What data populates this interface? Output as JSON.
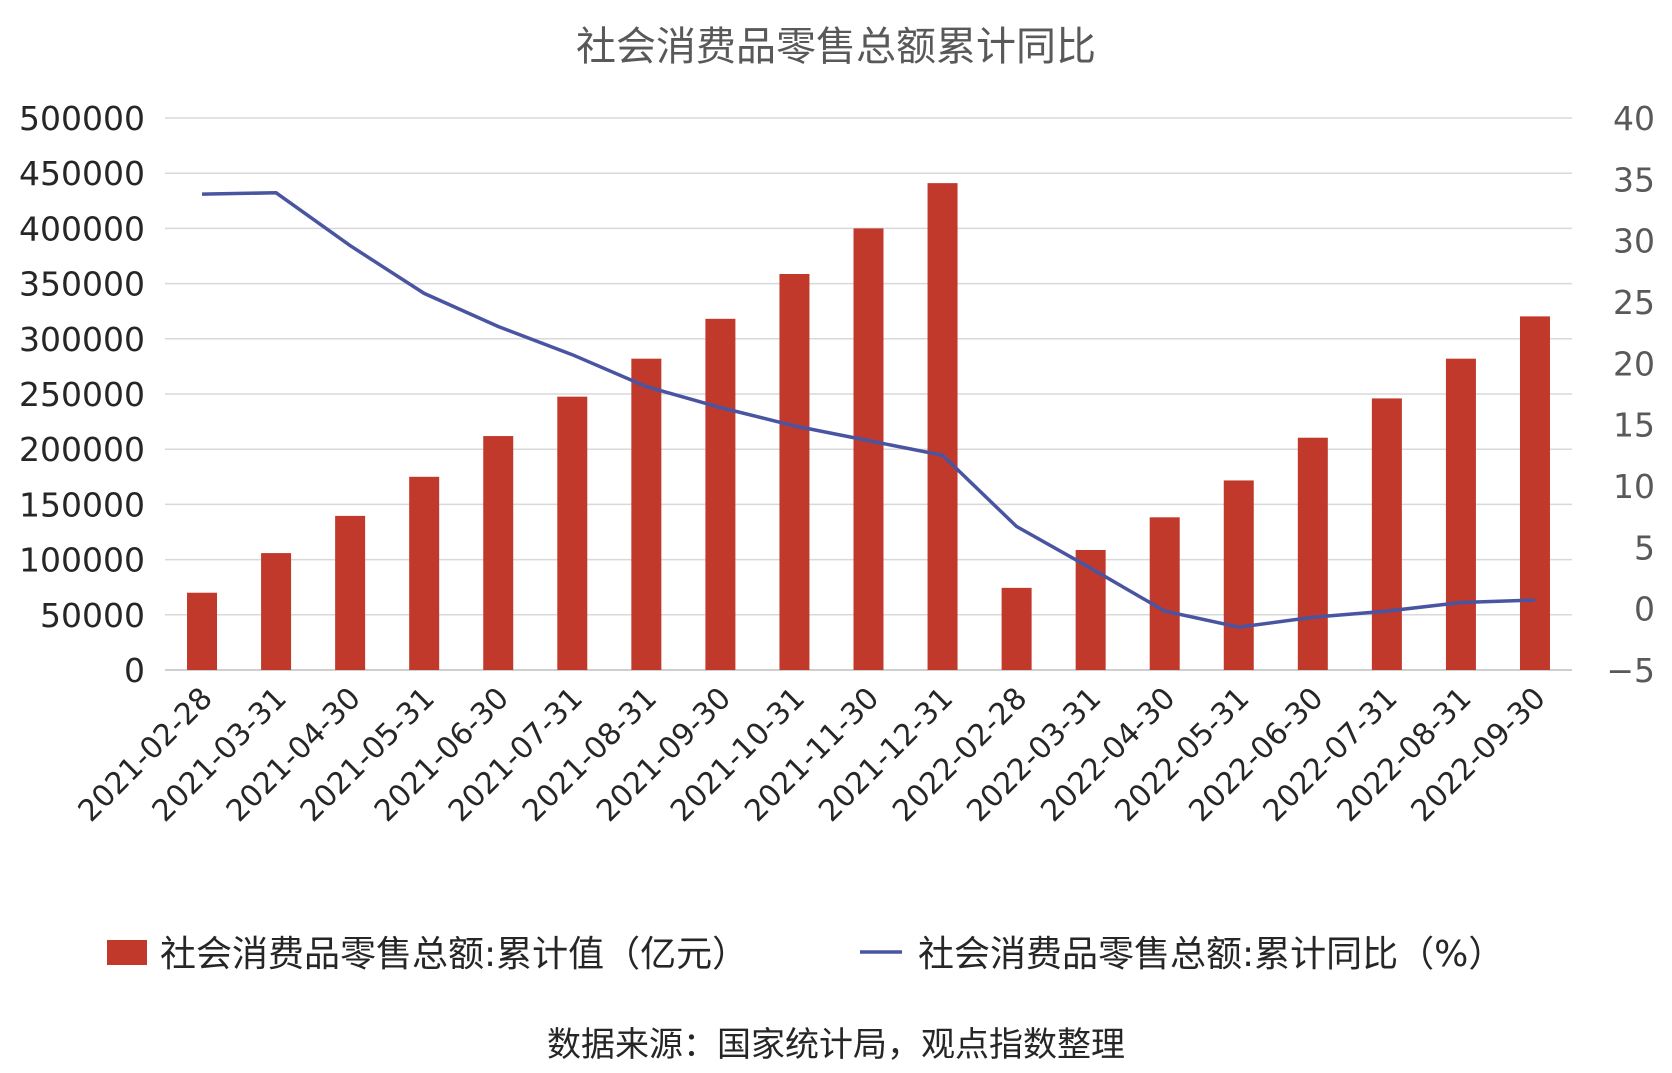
{
  "chart_data": {
    "type": "bar",
    "title": "社会消费品零售总额累计同比",
    "categories": [
      "2021-02-28",
      "2021-03-31",
      "2021-04-30",
      "2021-05-31",
      "2021-06-30",
      "2021-07-31",
      "2021-08-31",
      "2021-09-30",
      "2021-10-31",
      "2021-11-30",
      "2021-12-31",
      "2022-02-28",
      "2022-03-31",
      "2022-04-30",
      "2022-05-31",
      "2022-06-30",
      "2022-07-31",
      "2022-08-31",
      "2022-09-30"
    ],
    "series": [
      {
        "name": "社会消费品零售总额:累计值（亿元）",
        "type": "bar",
        "axis": "left",
        "color": "#c0392b",
        "values": [
          70000,
          105900,
          139600,
          175000,
          211900,
          247600,
          282000,
          318100,
          358700,
          400000,
          441000,
          74400,
          108700,
          138300,
          171700,
          210400,
          246000,
          282000,
          320300
        ]
      },
      {
        "name": "社会消费品零售总额:累计同比（%）",
        "type": "line",
        "axis": "right",
        "color": "#4a55a2",
        "values": [
          33.8,
          33.9,
          29.6,
          25.7,
          23.0,
          20.7,
          18.1,
          16.4,
          14.9,
          13.7,
          12.5,
          6.7,
          3.3,
          -0.2,
          -1.5,
          -0.7,
          -0.2,
          0.5,
          0.7
        ]
      }
    ],
    "y_left": {
      "min": 0,
      "max": 500000,
      "step": 50000,
      "ticks": [
        "0",
        "50000",
        "100000",
        "150000",
        "200000",
        "250000",
        "300000",
        "350000",
        "400000",
        "450000",
        "500000"
      ]
    },
    "y_right": {
      "min": -5,
      "max": 40,
      "step": 5,
      "ticks": [
        "−5",
        "0",
        "5",
        "10",
        "15",
        "20",
        "25",
        "30",
        "35",
        "40"
      ]
    },
    "grid": true,
    "legend": "bottom",
    "source": "数据来源：国家统计局，观点指数整理"
  }
}
